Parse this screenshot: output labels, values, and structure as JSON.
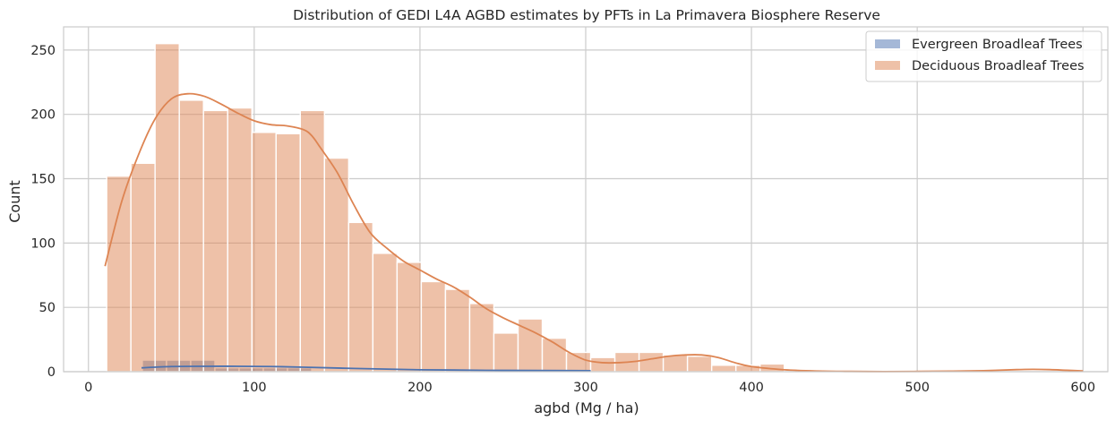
{
  "chart_data": {
    "type": "histogram",
    "title": "Distribution of GEDI L4A AGBD estimates by PFTs in La Primavera Biosphere Reserve",
    "xlabel": "agbd (Mg / ha)",
    "ylabel": "Count",
    "xlim": [
      -15,
      615
    ],
    "ylim": [
      0,
      268
    ],
    "xticks": [
      0,
      100,
      200,
      300,
      400,
      500,
      600
    ],
    "yticks": [
      0,
      50,
      100,
      150,
      200,
      250
    ],
    "grid": true,
    "legend_position": "top-right",
    "series": [
      {
        "name": "Evergreen Broadleaf Trees",
        "color": "#4c72b0",
        "bar_alpha": 0.5,
        "bin_width": 14.6,
        "bins": [
          {
            "x0": 32.5,
            "count": 9
          },
          {
            "x0": 47.1,
            "count": 9
          },
          {
            "x0": 61.7,
            "count": 9
          },
          {
            "x0": 76.3,
            "count": 3
          },
          {
            "x0": 90.9,
            "count": 3
          },
          {
            "x0": 105.5,
            "count": 3
          },
          {
            "x0": 120.1,
            "count": 3
          }
        ],
        "kde": {
          "x": [
            32,
            50,
            70,
            90,
            110,
            130,
            160,
            200,
            250,
            303
          ],
          "y": [
            3,
            4,
            4.2,
            4.2,
            4,
            3.5,
            2.5,
            1.5,
            1,
            0.8
          ]
        }
      },
      {
        "name": "Deciduous Broadleaf Trees",
        "color": "#dd8452",
        "bar_alpha": 0.5,
        "bin_width": 14.6,
        "bins": [
          {
            "x0": 11,
            "count": 152
          },
          {
            "x0": 25.6,
            "count": 162
          },
          {
            "x0": 40.2,
            "count": 255
          },
          {
            "x0": 54.8,
            "count": 211
          },
          {
            "x0": 69.4,
            "count": 203
          },
          {
            "x0": 84,
            "count": 205
          },
          {
            "x0": 98.6,
            "count": 186
          },
          {
            "x0": 113.2,
            "count": 185
          },
          {
            "x0": 127.8,
            "count": 203
          },
          {
            "x0": 142.4,
            "count": 166
          },
          {
            "x0": 157,
            "count": 116
          },
          {
            "x0": 171.6,
            "count": 92
          },
          {
            "x0": 186.2,
            "count": 85
          },
          {
            "x0": 200.8,
            "count": 70
          },
          {
            "x0": 215.4,
            "count": 64
          },
          {
            "x0": 230,
            "count": 53
          },
          {
            "x0": 244.6,
            "count": 30
          },
          {
            "x0": 259.2,
            "count": 41
          },
          {
            "x0": 273.8,
            "count": 26
          },
          {
            "x0": 288.4,
            "count": 15
          },
          {
            "x0": 303,
            "count": 11
          },
          {
            "x0": 317.6,
            "count": 15
          },
          {
            "x0": 332.2,
            "count": 15
          },
          {
            "x0": 346.8,
            "count": 13
          },
          {
            "x0": 361.4,
            "count": 12
          },
          {
            "x0": 376,
            "count": 5
          },
          {
            "x0": 390.6,
            "count": 5
          },
          {
            "x0": 405.2,
            "count": 6
          }
        ],
        "kde": {
          "x": [
            10,
            20,
            30,
            40,
            50,
            60,
            70,
            80,
            90,
            100,
            110,
            120,
            130,
            135,
            140,
            150,
            160,
            170,
            180,
            190,
            200,
            210,
            220,
            230,
            240,
            250,
            260,
            270,
            280,
            290,
            300,
            310,
            320,
            330,
            340,
            350,
            360,
            370,
            380,
            390,
            400,
            420,
            440,
            460,
            480,
            500,
            520,
            540,
            560,
            570,
            580,
            590,
            600
          ],
          "y": [
            82,
            132,
            168,
            196,
            212,
            216,
            214,
            208,
            201,
            195,
            192,
            191,
            188,
            183,
            174,
            155,
            130,
            108,
            96,
            86,
            79,
            72,
            66,
            58,
            49,
            42,
            36,
            30,
            23,
            15,
            9,
            7,
            7,
            8,
            10,
            12,
            13,
            13,
            11,
            7,
            4,
            1.5,
            0.5,
            0.2,
            0.1,
            0.2,
            0.4,
            0.8,
            1.6,
            1.8,
            1.6,
            1.1,
            0.6
          ]
        }
      }
    ]
  }
}
